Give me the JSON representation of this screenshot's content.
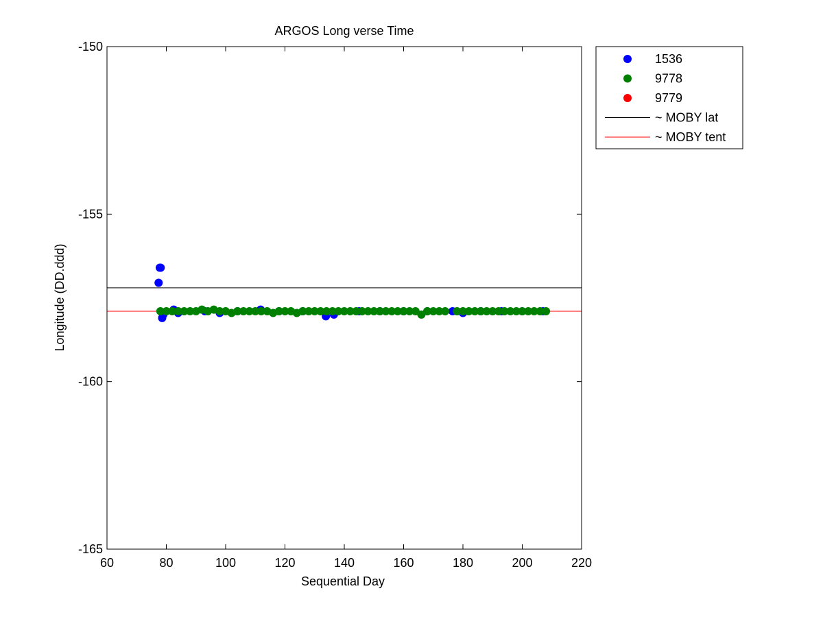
{
  "chart_data": {
    "type": "scatter",
    "title": "ARGOS Long verse Time",
    "xlabel": "Sequential Day",
    "ylabel": "Longitude (DD.ddd)",
    "xlim": [
      60,
      220
    ],
    "ylim": [
      -165,
      -150
    ],
    "xticks": [
      60,
      80,
      100,
      120,
      140,
      160,
      180,
      200,
      220
    ],
    "yticks": [
      -150,
      -155,
      -160,
      -165
    ],
    "xtick_labels": [
      "60",
      "80",
      "100",
      "120",
      "140",
      "160",
      "180",
      "200",
      "220"
    ],
    "ytick_labels": [
      "-150",
      "-155",
      "-160",
      "-165"
    ],
    "grid": false,
    "legend_position": "outside-top-right",
    "series": [
      {
        "name": "1536",
        "color": "#0000ff",
        "points": [
          [
            77.4,
            -157.05
          ],
          [
            77.8,
            -156.6
          ],
          [
            78.1,
            -156.6
          ],
          [
            78.6,
            -158.1
          ],
          [
            79.0,
            -158.0
          ],
          [
            82.5,
            -157.85
          ],
          [
            84.0,
            -157.95
          ],
          [
            93.0,
            -157.9
          ],
          [
            98.0,
            -157.95
          ],
          [
            104.0,
            -157.9
          ],
          [
            111.8,
            -157.85
          ],
          [
            118.0,
            -157.9
          ],
          [
            126.0,
            -157.9
          ],
          [
            133.8,
            -158.05
          ],
          [
            136.5,
            -158.0
          ],
          [
            145.0,
            -157.9
          ],
          [
            152.0,
            -157.9
          ],
          [
            160.0,
            -157.9
          ],
          [
            168.0,
            -157.9
          ],
          [
            176.5,
            -157.9
          ],
          [
            180.0,
            -157.95
          ],
          [
            186.0,
            -157.9
          ],
          [
            193.0,
            -157.9
          ],
          [
            200.0,
            -157.9
          ],
          [
            207.0,
            -157.9
          ]
        ]
      },
      {
        "name": "9778",
        "color": "#008000",
        "points": [
          [
            78.0,
            -157.9
          ],
          [
            80.0,
            -157.9
          ],
          [
            82.0,
            -157.9
          ],
          [
            84.0,
            -157.9
          ],
          [
            86.0,
            -157.9
          ],
          [
            88.0,
            -157.9
          ],
          [
            90.0,
            -157.9
          ],
          [
            92.0,
            -157.85
          ],
          [
            94.0,
            -157.9
          ],
          [
            96.0,
            -157.85
          ],
          [
            98.0,
            -157.9
          ],
          [
            100.0,
            -157.9
          ],
          [
            102.0,
            -157.95
          ],
          [
            104.0,
            -157.9
          ],
          [
            106.0,
            -157.9
          ],
          [
            108.0,
            -157.9
          ],
          [
            110.0,
            -157.9
          ],
          [
            112.0,
            -157.9
          ],
          [
            114.0,
            -157.9
          ],
          [
            116.0,
            -157.95
          ],
          [
            118.0,
            -157.9
          ],
          [
            120.0,
            -157.9
          ],
          [
            122.0,
            -157.9
          ],
          [
            124.0,
            -157.95
          ],
          [
            126.0,
            -157.9
          ],
          [
            128.0,
            -157.9
          ],
          [
            130.0,
            -157.9
          ],
          [
            132.0,
            -157.9
          ],
          [
            134.0,
            -157.9
          ],
          [
            136.0,
            -157.9
          ],
          [
            138.0,
            -157.9
          ],
          [
            140.0,
            -157.9
          ],
          [
            142.0,
            -157.9
          ],
          [
            144.0,
            -157.9
          ],
          [
            146.0,
            -157.9
          ],
          [
            148.0,
            -157.9
          ],
          [
            150.0,
            -157.9
          ],
          [
            152.0,
            -157.9
          ],
          [
            154.0,
            -157.9
          ],
          [
            156.0,
            -157.9
          ],
          [
            158.0,
            -157.9
          ],
          [
            160.0,
            -157.9
          ],
          [
            162.0,
            -157.9
          ],
          [
            164.0,
            -157.9
          ],
          [
            166.0,
            -158.0
          ],
          [
            168.0,
            -157.9
          ],
          [
            170.0,
            -157.9
          ],
          [
            172.0,
            -157.9
          ],
          [
            174.0,
            -157.9
          ],
          [
            178.0,
            -157.9
          ],
          [
            180.0,
            -157.9
          ],
          [
            182.0,
            -157.9
          ],
          [
            184.0,
            -157.9
          ],
          [
            186.0,
            -157.9
          ],
          [
            188.0,
            -157.9
          ],
          [
            190.0,
            -157.9
          ],
          [
            192.0,
            -157.9
          ],
          [
            194.0,
            -157.9
          ],
          [
            196.0,
            -157.9
          ],
          [
            198.0,
            -157.9
          ],
          [
            200.0,
            -157.9
          ],
          [
            202.0,
            -157.9
          ],
          [
            204.0,
            -157.9
          ],
          [
            206.0,
            -157.9
          ],
          [
            208.0,
            -157.9
          ]
        ]
      },
      {
        "name": "9779",
        "color": "#ff0000",
        "points": []
      }
    ],
    "reference_lines": [
      {
        "name": "~ MOBY lat",
        "color": "#000000",
        "y": -157.2
      },
      {
        "name": "~ MOBY tent",
        "color": "#ff0000",
        "y": -157.9
      }
    ]
  }
}
